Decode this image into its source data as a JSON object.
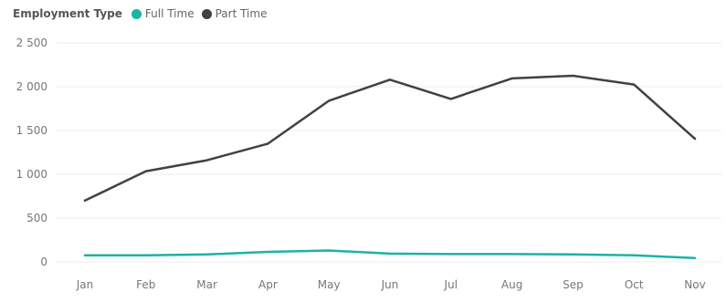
{
  "legend": {
    "title": "Employment Type",
    "items": [
      {
        "label": "Full Time",
        "color": "#1AB3A6"
      },
      {
        "label": "Part Time",
        "color": "#3F4244"
      }
    ]
  },
  "chart_data": {
    "type": "line",
    "categories": [
      "Jan",
      "Feb",
      "Mar",
      "Apr",
      "May",
      "Jun",
      "Jul",
      "Aug",
      "Sep",
      "Oct",
      "Nov"
    ],
    "series": [
      {
        "name": "Full Time",
        "color": "#1AB3A6",
        "values": [
          75,
          75,
          85,
          115,
          130,
          95,
          90,
          90,
          85,
          75,
          45
        ]
      },
      {
        "name": "Part Time",
        "color": "#3F4244",
        "values": [
          700,
          1035,
          1160,
          1350,
          1840,
          2080,
          1860,
          2095,
          2125,
          2025,
          1405
        ]
      }
    ],
    "yticks": [
      0,
      500,
      1000,
      1500,
      2000,
      2500
    ],
    "yticklabels": [
      "0",
      "500",
      "1 000",
      "1 500",
      "2 000",
      "2 500"
    ],
    "ylim": [
      0,
      2500
    ],
    "grid": true,
    "legend_position": "top-left"
  }
}
